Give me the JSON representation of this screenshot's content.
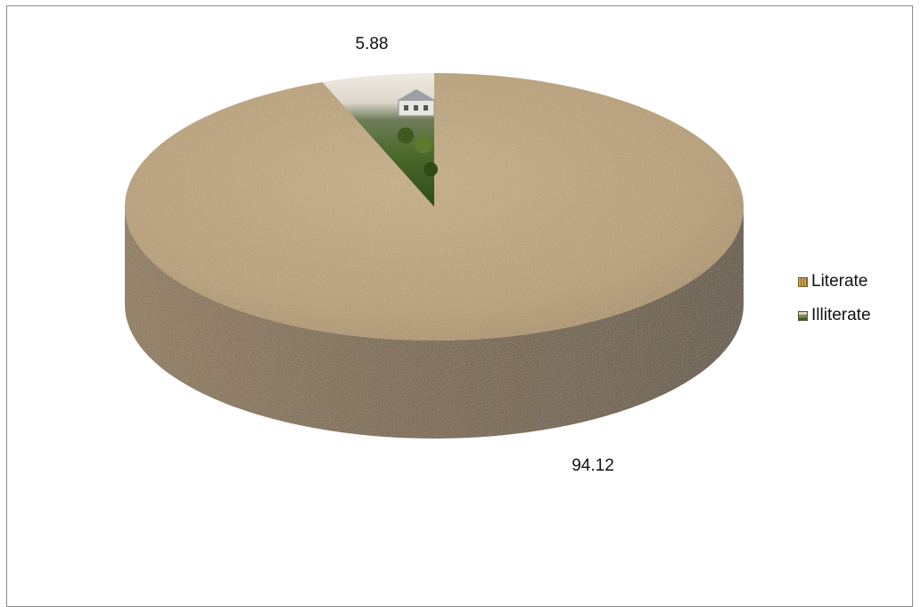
{
  "chart_data": {
    "type": "pie",
    "style": "3d",
    "categories": [
      "Literate",
      "Illiterate"
    ],
    "values": [
      94.12,
      5.88
    ],
    "data_labels": [
      "94.12",
      "5.88"
    ],
    "title": "",
    "legend_position": "right",
    "colors": {
      "Literate": "#bfa679",
      "Illiterate": "#4f6b2f"
    }
  },
  "legend": {
    "items": [
      {
        "label": "Literate",
        "icon": "burlap-texture-swatch",
        "color": "#c9a45a"
      },
      {
        "label": "Illiterate",
        "icon": "landscape-photo-swatch",
        "color": "#7d8a4e"
      }
    ]
  }
}
